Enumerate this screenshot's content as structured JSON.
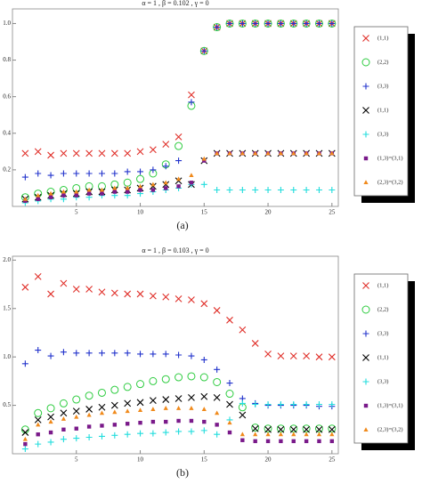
{
  "chart_data": [
    {
      "type": "scatter",
      "title": "α = 1 , β = 0.102 , γ = 0",
      "caption": "(a)",
      "x": [
        1,
        2,
        3,
        4,
        5,
        6,
        7,
        8,
        9,
        10,
        11,
        12,
        13,
        14,
        15,
        16,
        17,
        18,
        19,
        20,
        21,
        22,
        23,
        24,
        25
      ],
      "xlim": [
        0,
        25.5
      ],
      "xticks": [
        5,
        10,
        15,
        20,
        25
      ],
      "ylim": [
        0,
        1.08
      ],
      "yticks": [
        0.2,
        0.4,
        0.6,
        0.8,
        {
          "value": 1,
          "label": "1.0"
        }
      ],
      "series": [
        {
          "name": "(1,1)",
          "color": "#e0302a",
          "marker": "x",
          "values": [
            0.29,
            0.3,
            0.28,
            0.29,
            0.29,
            0.29,
            0.29,
            0.29,
            0.29,
            0.3,
            0.31,
            0.34,
            0.38,
            0.61,
            0.85,
            0.98,
            1,
            1,
            1,
            1,
            1,
            1,
            1,
            1,
            1
          ]
        },
        {
          "name": "(2,2)",
          "color": "#2ecc40",
          "marker": "circle",
          "values": [
            0.05,
            0.07,
            0.08,
            0.09,
            0.1,
            0.11,
            0.11,
            0.12,
            0.13,
            0.15,
            0.18,
            0.23,
            0.33,
            0.55,
            0.85,
            0.98,
            1,
            1,
            1,
            1,
            1,
            1,
            1,
            1,
            1
          ]
        },
        {
          "name": "(3,3)",
          "color": "#2233cc",
          "marker": "plus",
          "values": [
            0.16,
            0.18,
            0.17,
            0.18,
            0.18,
            0.18,
            0.18,
            0.18,
            0.19,
            0.19,
            0.2,
            0.22,
            0.25,
            0.57,
            0.85,
            0.98,
            1,
            1,
            1,
            1,
            1,
            1,
            1,
            1,
            1
          ]
        },
        {
          "name": "(1,1)",
          "color": "#000000",
          "marker": "x",
          "values": [
            0.04,
            0.05,
            0.06,
            0.07,
            0.07,
            0.08,
            0.08,
            0.09,
            0.09,
            0.1,
            0.11,
            0.12,
            0.14,
            0.12,
            0.25,
            0.29,
            0.29,
            0.29,
            0.29,
            0.29,
            0.29,
            0.29,
            0.29,
            0.29,
            0.29
          ]
        },
        {
          "name": "(3,3)",
          "color": "#22dddd",
          "marker": "plus",
          "values": [
            0.02,
            0.03,
            0.04,
            0.04,
            0.05,
            0.05,
            0.06,
            0.06,
            0.06,
            0.07,
            0.08,
            0.09,
            0.1,
            0.12,
            0.12,
            0.09,
            0.09,
            0.09,
            0.09,
            0.09,
            0.09,
            0.09,
            0.09,
            0.09,
            0.09
          ]
        },
        {
          "name": "(1,3)=(3,1)",
          "color": "#7a1a8a",
          "marker": "square",
          "values": [
            0.03,
            0.04,
            0.05,
            0.06,
            0.06,
            0.07,
            0.07,
            0.08,
            0.08,
            0.09,
            0.09,
            0.1,
            0.11,
            0.13,
            0.25,
            0.29,
            0.29,
            0.29,
            0.29,
            0.29,
            0.29,
            0.29,
            0.29,
            0.29,
            0.29
          ]
        },
        {
          "name": "(2,3)=(3,2)",
          "color": "#f08a1c",
          "marker": "triangle",
          "values": [
            0.04,
            0.06,
            0.07,
            0.08,
            0.08,
            0.09,
            0.09,
            0.1,
            0.1,
            0.11,
            0.12,
            0.13,
            0.15,
            0.17,
            0.26,
            0.29,
            0.29,
            0.29,
            0.29,
            0.29,
            0.29,
            0.29,
            0.29,
            0.29,
            0.29
          ]
        }
      ]
    },
    {
      "type": "scatter",
      "title": "α = 1 , β = 0.103 , γ = 0",
      "caption": "(b)",
      "x": [
        1,
        2,
        3,
        4,
        5,
        6,
        7,
        8,
        9,
        10,
        11,
        12,
        13,
        14,
        15,
        16,
        17,
        18,
        19,
        20,
        21,
        22,
        23,
        24,
        25
      ],
      "xlim": [
        0,
        25.5
      ],
      "xticks": [
        5,
        10,
        15,
        20,
        25
      ],
      "ylim": [
        0,
        2.04
      ],
      "yticks": [
        0.5,
        {
          "value": 1,
          "label": "1.0"
        },
        {
          "value": 1.5,
          "label": "1.5"
        },
        {
          "value": 2,
          "label": "2.0"
        }
      ],
      "series": [
        {
          "name": "(1,1)",
          "color": "#e0302a",
          "marker": "x",
          "values": [
            1.72,
            1.83,
            1.65,
            1.76,
            1.7,
            1.7,
            1.67,
            1.66,
            1.65,
            1.65,
            1.63,
            1.62,
            1.6,
            1.59,
            1.55,
            1.48,
            1.38,
            1.28,
            1.14,
            1.03,
            1.01,
            1.01,
            1.01,
            1,
            1
          ]
        },
        {
          "name": "(2,2)",
          "color": "#2ecc40",
          "marker": "circle",
          "values": [
            0.25,
            0.42,
            0.47,
            0.52,
            0.56,
            0.6,
            0.63,
            0.66,
            0.69,
            0.72,
            0.75,
            0.77,
            0.79,
            0.8,
            0.79,
            0.74,
            0.62,
            0.48,
            0.27,
            0.26,
            0.26,
            0.26,
            0.26,
            0.26,
            0.26
          ]
        },
        {
          "name": "(3,3)",
          "color": "#2233cc",
          "marker": "plus",
          "values": [
            0.93,
            1.07,
            1.01,
            1.05,
            1.04,
            1.04,
            1.04,
            1.04,
            1.04,
            1.03,
            1.03,
            1.03,
            1.02,
            1.01,
            0.97,
            0.87,
            0.73,
            0.57,
            0.52,
            0.5,
            0.5,
            0.5,
            0.5,
            0.49,
            0.49
          ]
        },
        {
          "name": "(1,1)",
          "color": "#000000",
          "marker": "x",
          "values": [
            0.22,
            0.35,
            0.38,
            0.42,
            0.44,
            0.46,
            0.48,
            0.5,
            0.52,
            0.53,
            0.55,
            0.56,
            0.57,
            0.58,
            0.59,
            0.58,
            0.51,
            0.4,
            0.26,
            0.25,
            0.25,
            0.25,
            0.25,
            0.25,
            0.25
          ]
        },
        {
          "name": "(3,3)",
          "color": "#22dddd",
          "marker": "plus",
          "values": [
            0.05,
            0.1,
            0.12,
            0.15,
            0.16,
            0.17,
            0.18,
            0.19,
            0.2,
            0.21,
            0.21,
            0.22,
            0.23,
            0.23,
            0.24,
            0.2,
            0.35,
            0.52,
            0.51,
            0.51,
            0.51,
            0.51,
            0.51,
            0.51,
            0.51
          ]
        },
        {
          "name": "(1,3)=(3,1)",
          "color": "#7a1a8a",
          "marker": "square",
          "values": [
            0.1,
            0.2,
            0.22,
            0.25,
            0.26,
            0.28,
            0.29,
            0.3,
            0.31,
            0.32,
            0.33,
            0.33,
            0.34,
            0.34,
            0.33,
            0.3,
            0.22,
            0.14,
            0.13,
            0.13,
            0.13,
            0.13,
            0.13,
            0.13,
            0.13
          ]
        },
        {
          "name": "(2,3)=(3,2)",
          "color": "#f08a1c",
          "marker": "triangle",
          "values": [
            0.15,
            0.3,
            0.33,
            0.36,
            0.38,
            0.4,
            0.42,
            0.43,
            0.44,
            0.45,
            0.46,
            0.47,
            0.47,
            0.47,
            0.46,
            0.42,
            0.32,
            0.2,
            0.2,
            0.2,
            0.2,
            0.2,
            0.2,
            0.2,
            0.2
          ]
        }
      ]
    }
  ]
}
